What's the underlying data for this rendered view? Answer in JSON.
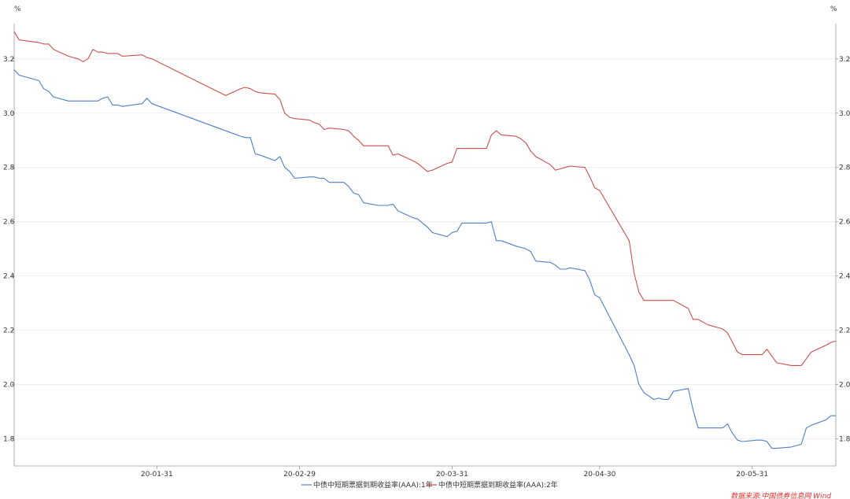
{
  "chart_data": {
    "type": "line",
    "unit_left": "%",
    "unit_right": "%",
    "ylim": [
      1.7,
      3.33
    ],
    "y_ticks": [
      "1.8",
      "2.0",
      "2.2",
      "2.4",
      "2.6",
      "2.8",
      "3.0",
      "3.2"
    ],
    "x_ticks": [
      "20-01-31",
      "20-02-29",
      "20-03-31",
      "20-04-30",
      "20-05-31"
    ],
    "xlim": [
      "2020-01-02",
      "2020-06-17"
    ],
    "grid": true,
    "legend_position": "bottom-center",
    "source": "数据来源:中国债券信息网 Wind",
    "series": [
      {
        "name": "中债中短期票据到期收益率(AAA):1年",
        "color": "#4f7fc4",
        "points": [
          [
            "2020-01-02",
            3.16
          ],
          [
            "2020-01-03",
            3.14
          ],
          [
            "2020-01-07",
            3.12
          ],
          [
            "2020-01-08",
            3.09
          ],
          [
            "2020-01-09",
            3.08
          ],
          [
            "2020-01-10",
            3.06
          ],
          [
            "2020-01-13",
            3.045
          ],
          [
            "2020-01-14",
            3.045
          ],
          [
            "2020-01-15",
            3.045
          ],
          [
            "2020-01-16",
            3.045
          ],
          [
            "2020-01-17",
            3.045
          ],
          [
            "2020-01-18",
            3.045
          ],
          [
            "2020-01-19",
            3.045
          ],
          [
            "2020-01-20",
            3.055
          ],
          [
            "2020-01-21",
            3.06
          ],
          [
            "2020-01-22",
            3.03
          ],
          [
            "2020-01-23",
            3.03
          ],
          [
            "2020-01-24",
            3.025
          ],
          [
            "2020-01-28",
            3.035
          ],
          [
            "2020-01-29",
            3.055
          ],
          [
            "2020-01-30",
            3.035
          ],
          [
            "2020-02-14",
            2.935
          ],
          [
            "2020-02-17",
            2.915
          ],
          [
            "2020-02-18",
            2.91
          ],
          [
            "2020-02-19",
            2.91
          ],
          [
            "2020-02-20",
            2.85
          ],
          [
            "2020-02-21",
            2.845
          ],
          [
            "2020-02-24",
            2.825
          ],
          [
            "2020-02-25",
            2.84
          ],
          [
            "2020-02-26",
            2.8
          ],
          [
            "2020-02-27",
            2.785
          ],
          [
            "2020-02-28",
            2.76
          ],
          [
            "2020-03-02",
            2.765
          ],
          [
            "2020-03-03",
            2.765
          ],
          [
            "2020-03-04",
            2.76
          ],
          [
            "2020-03-05",
            2.76
          ],
          [
            "2020-03-06",
            2.745
          ],
          [
            "2020-03-09",
            2.745
          ],
          [
            "2020-03-10",
            2.73
          ],
          [
            "2020-03-11",
            2.705
          ],
          [
            "2020-03-12",
            2.7
          ],
          [
            "2020-03-13",
            2.67
          ],
          [
            "2020-03-16",
            2.66
          ],
          [
            "2020-03-17",
            2.66
          ],
          [
            "2020-03-18",
            2.66
          ],
          [
            "2020-03-19",
            2.665
          ],
          [
            "2020-03-20",
            2.64
          ],
          [
            "2020-03-23",
            2.615
          ],
          [
            "2020-03-24",
            2.61
          ],
          [
            "2020-03-25",
            2.595
          ],
          [
            "2020-03-26",
            2.58
          ],
          [
            "2020-03-27",
            2.56
          ],
          [
            "2020-03-30",
            2.545
          ],
          [
            "2020-03-31",
            2.56
          ],
          [
            "2020-04-01",
            2.565
          ],
          [
            "2020-04-02",
            2.595
          ],
          [
            "2020-04-03",
            2.595
          ],
          [
            "2020-04-07",
            2.595
          ],
          [
            "2020-04-08",
            2.6
          ],
          [
            "2020-04-09",
            2.53
          ],
          [
            "2020-04-10",
            2.53
          ],
          [
            "2020-04-13",
            2.51
          ],
          [
            "2020-04-14",
            2.505
          ],
          [
            "2020-04-15",
            2.5
          ],
          [
            "2020-04-16",
            2.49
          ],
          [
            "2020-04-17",
            2.455
          ],
          [
            "2020-04-20",
            2.45
          ],
          [
            "2020-04-21",
            2.44
          ],
          [
            "2020-04-22",
            2.425
          ],
          [
            "2020-04-23",
            2.425
          ],
          [
            "2020-04-24",
            2.43
          ],
          [
            "2020-04-27",
            2.42
          ],
          [
            "2020-04-28",
            2.385
          ],
          [
            "2020-04-29",
            2.33
          ],
          [
            "2020-04-30",
            2.32
          ],
          [
            "2020-05-06",
            2.11
          ],
          [
            "2020-05-07",
            2.07
          ],
          [
            "2020-05-08",
            2.0
          ],
          [
            "2020-05-09",
            1.97
          ],
          [
            "2020-05-11",
            1.945
          ],
          [
            "2020-05-12",
            1.95
          ],
          [
            "2020-05-13",
            1.945
          ],
          [
            "2020-05-14",
            1.945
          ],
          [
            "2020-05-15",
            1.975
          ],
          [
            "2020-05-18",
            1.985
          ],
          [
            "2020-05-19",
            1.905
          ],
          [
            "2020-05-20",
            1.84
          ],
          [
            "2020-05-21",
            1.84
          ],
          [
            "2020-05-22",
            1.84
          ],
          [
            "2020-05-25",
            1.84
          ],
          [
            "2020-05-26",
            1.855
          ],
          [
            "2020-05-27",
            1.82
          ],
          [
            "2020-05-28",
            1.795
          ],
          [
            "2020-05-29",
            1.79
          ],
          [
            "2020-06-01",
            1.795
          ],
          [
            "2020-06-02",
            1.795
          ],
          [
            "2020-06-03",
            1.79
          ],
          [
            "2020-06-04",
            1.765
          ],
          [
            "2020-06-05",
            1.765
          ],
          [
            "2020-06-08",
            1.77
          ],
          [
            "2020-06-09",
            1.775
          ],
          [
            "2020-06-10",
            1.78
          ],
          [
            "2020-06-11",
            1.84
          ],
          [
            "2020-06-12",
            1.85
          ],
          [
            "2020-06-15",
            1.87
          ],
          [
            "2020-06-16",
            1.885
          ],
          [
            "2020-06-17",
            1.885
          ]
        ]
      },
      {
        "name": "中债中短期票据到期收益率(AAA):2年",
        "color": "#c9504c",
        "points": [
          [
            "2020-01-02",
            3.3
          ],
          [
            "2020-01-03",
            3.27
          ],
          [
            "2020-01-07",
            3.26
          ],
          [
            "2020-01-08",
            3.255
          ],
          [
            "2020-01-09",
            3.255
          ],
          [
            "2020-01-10",
            3.235
          ],
          [
            "2020-01-13",
            3.21
          ],
          [
            "2020-01-14",
            3.205
          ],
          [
            "2020-01-15",
            3.2
          ],
          [
            "2020-01-16",
            3.19
          ],
          [
            "2020-01-17",
            3.2
          ],
          [
            "2020-01-18",
            3.235
          ],
          [
            "2020-01-19",
            3.225
          ],
          [
            "2020-01-20",
            3.225
          ],
          [
            "2020-01-21",
            3.22
          ],
          [
            "2020-01-22",
            3.22
          ],
          [
            "2020-01-23",
            3.22
          ],
          [
            "2020-01-24",
            3.21
          ],
          [
            "2020-01-28",
            3.215
          ],
          [
            "2020-01-29",
            3.205
          ],
          [
            "2020-01-30",
            3.2
          ],
          [
            "2020-02-14",
            3.065
          ],
          [
            "2020-02-17",
            3.09
          ],
          [
            "2020-02-18",
            3.095
          ],
          [
            "2020-02-19",
            3.09
          ],
          [
            "2020-02-20",
            3.08
          ],
          [
            "2020-02-21",
            3.075
          ],
          [
            "2020-02-24",
            3.07
          ],
          [
            "2020-02-25",
            3.05
          ],
          [
            "2020-02-26",
            3.0
          ],
          [
            "2020-02-27",
            2.985
          ],
          [
            "2020-02-28",
            2.98
          ],
          [
            "2020-03-02",
            2.975
          ],
          [
            "2020-03-03",
            2.965
          ],
          [
            "2020-03-04",
            2.96
          ],
          [
            "2020-03-05",
            2.94
          ],
          [
            "2020-03-06",
            2.945
          ],
          [
            "2020-03-09",
            2.94
          ],
          [
            "2020-03-10",
            2.935
          ],
          [
            "2020-03-11",
            2.915
          ],
          [
            "2020-03-12",
            2.9
          ],
          [
            "2020-03-13",
            2.88
          ],
          [
            "2020-03-16",
            2.88
          ],
          [
            "2020-03-17",
            2.88
          ],
          [
            "2020-03-18",
            2.88
          ],
          [
            "2020-03-19",
            2.845
          ],
          [
            "2020-03-20",
            2.85
          ],
          [
            "2020-03-23",
            2.825
          ],
          [
            "2020-03-24",
            2.815
          ],
          [
            "2020-03-25",
            2.8
          ],
          [
            "2020-03-26",
            2.785
          ],
          [
            "2020-03-27",
            2.79
          ],
          [
            "2020-03-30",
            2.815
          ],
          [
            "2020-03-31",
            2.82
          ],
          [
            "2020-04-01",
            2.87
          ],
          [
            "2020-04-02",
            2.87
          ],
          [
            "2020-04-03",
            2.87
          ],
          [
            "2020-04-07",
            2.87
          ],
          [
            "2020-04-08",
            2.92
          ],
          [
            "2020-04-09",
            2.935
          ],
          [
            "2020-04-10",
            2.92
          ],
          [
            "2020-04-13",
            2.915
          ],
          [
            "2020-04-14",
            2.905
          ],
          [
            "2020-04-15",
            2.89
          ],
          [
            "2020-04-16",
            2.86
          ],
          [
            "2020-04-17",
            2.84
          ],
          [
            "2020-04-20",
            2.81
          ],
          [
            "2020-04-21",
            2.79
          ],
          [
            "2020-04-22",
            2.795
          ],
          [
            "2020-04-23",
            2.8
          ],
          [
            "2020-04-24",
            2.805
          ],
          [
            "2020-04-27",
            2.8
          ],
          [
            "2020-04-28",
            2.765
          ],
          [
            "2020-04-29",
            2.725
          ],
          [
            "2020-04-30",
            2.715
          ],
          [
            "2020-05-06",
            2.53
          ],
          [
            "2020-05-07",
            2.41
          ],
          [
            "2020-05-08",
            2.34
          ],
          [
            "2020-05-09",
            2.31
          ],
          [
            "2020-05-11",
            2.31
          ],
          [
            "2020-05-12",
            2.31
          ],
          [
            "2020-05-13",
            2.31
          ],
          [
            "2020-05-14",
            2.31
          ],
          [
            "2020-05-15",
            2.31
          ],
          [
            "2020-05-18",
            2.28
          ],
          [
            "2020-05-19",
            2.24
          ],
          [
            "2020-05-20",
            2.24
          ],
          [
            "2020-05-21",
            2.23
          ],
          [
            "2020-05-22",
            2.22
          ],
          [
            "2020-05-25",
            2.205
          ],
          [
            "2020-05-26",
            2.19
          ],
          [
            "2020-05-27",
            2.155
          ],
          [
            "2020-05-28",
            2.12
          ],
          [
            "2020-05-29",
            2.11
          ],
          [
            "2020-06-01",
            2.11
          ],
          [
            "2020-06-02",
            2.11
          ],
          [
            "2020-06-03",
            2.13
          ],
          [
            "2020-06-04",
            2.105
          ],
          [
            "2020-06-05",
            2.08
          ],
          [
            "2020-06-08",
            2.07
          ],
          [
            "2020-06-09",
            2.07
          ],
          [
            "2020-06-10",
            2.07
          ],
          [
            "2020-06-11",
            2.095
          ],
          [
            "2020-06-12",
            2.12
          ],
          [
            "2020-06-15",
            2.145
          ],
          [
            "2020-06-16",
            2.155
          ],
          [
            "2020-06-17",
            2.16
          ]
        ]
      }
    ]
  }
}
